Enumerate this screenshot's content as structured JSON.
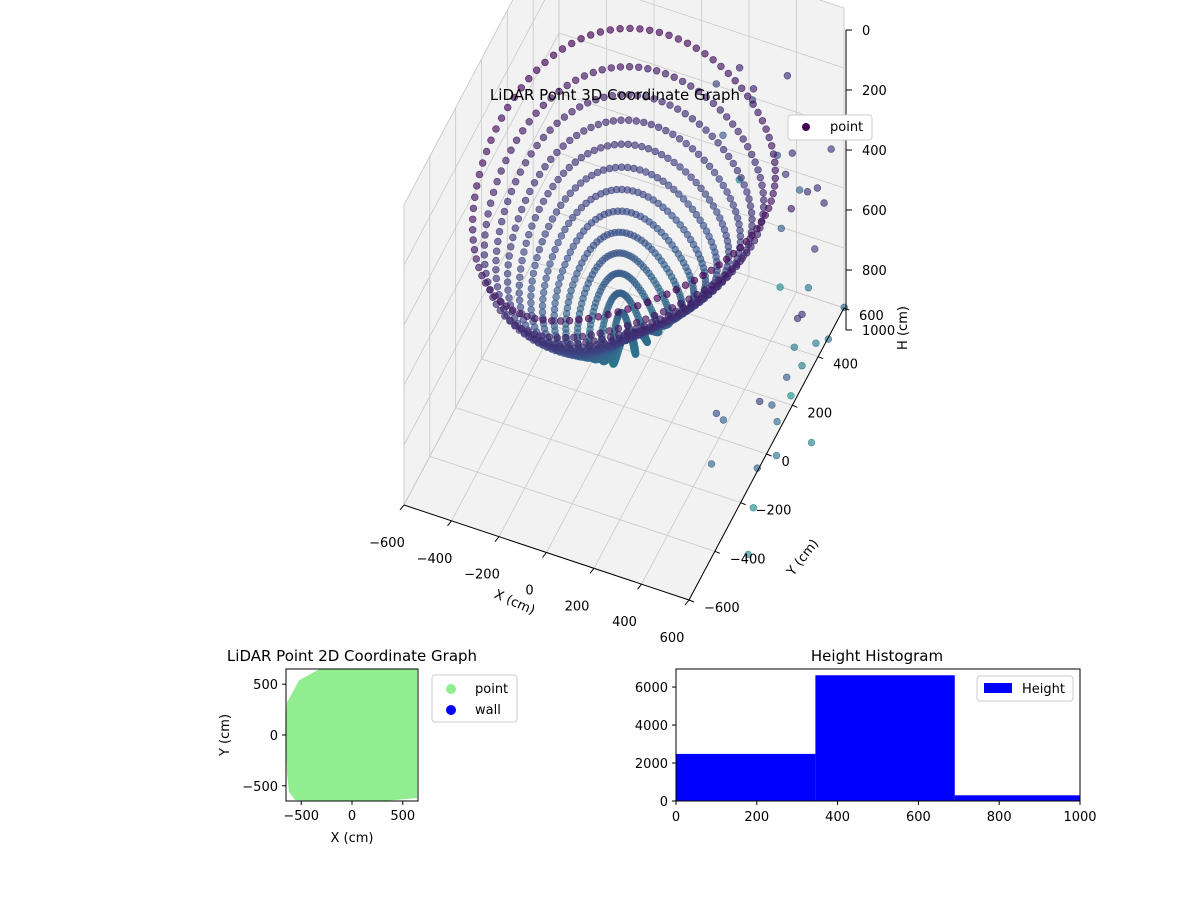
{
  "colors": {
    "scatter_dark": "#440154",
    "scatter_mid": "#3b528b",
    "scatter_light": "#21918c",
    "point_2d": "#90ee90",
    "wall_2d": "#0000ff",
    "histogram": "#0000ff",
    "pane": "#f2f2f2",
    "grid": "#c8c8c8"
  },
  "chart_data": [
    {
      "type": "scatter",
      "title": "LiDAR Point 3D Coordinate Graph",
      "xlabel": "X (cm)",
      "ylabel": "Y (cm)",
      "zlabel": "H (cm)",
      "legend": [
        "point"
      ],
      "legend_position": "top-right",
      "xlim": [
        -600,
        600
      ],
      "ylim": [
        -600,
        600
      ],
      "zlim": [
        0,
        1000
      ],
      "z_inverted": true,
      "xticks": [
        "−600",
        "−400",
        "−200",
        "0",
        "200",
        "400",
        "600"
      ],
      "yticks": [
        "−600",
        "−400",
        "−200",
        "0",
        "200",
        "400",
        "600"
      ],
      "zticks": [
        "0",
        "200",
        "400",
        "600",
        "800",
        "1000"
      ],
      "colormap": "viridis",
      "description_of_cloud": "bowl-shaped LiDAR point cloud, radius about 600 cm, rim near H 200-400 cm, bottom near H 700-800 cm",
      "grid": true
    },
    {
      "type": "scatter",
      "title": "LiDAR Point 2D Coordinate Graph",
      "xlabel": "X (cm)",
      "ylabel": "Y (cm)",
      "xlim": [
        -650,
        650
      ],
      "ylim": [
        -650,
        650
      ],
      "xticks": [
        "−500",
        "0",
        "500"
      ],
      "yticks": [
        "−500",
        "0",
        "500"
      ],
      "series": [
        {
          "name": "point",
          "color": "#90ee90"
        },
        {
          "name": "wall",
          "color": "#0000ff"
        }
      ],
      "legend_position": "outside-right"
    },
    {
      "type": "bar",
      "title": "Height Histogram",
      "legend": [
        "Height"
      ],
      "legend_position": "top-right",
      "bin_edges": [
        0,
        345,
        690,
        1035
      ],
      "values": [
        2480,
        6620,
        300
      ],
      "xlim": [
        0,
        1000
      ],
      "ylim": [
        0,
        6950
      ],
      "xticks": [
        "0",
        "200",
        "400",
        "600",
        "800",
        "1000"
      ],
      "yticks": [
        "0",
        "2000",
        "4000",
        "6000"
      ]
    }
  ]
}
